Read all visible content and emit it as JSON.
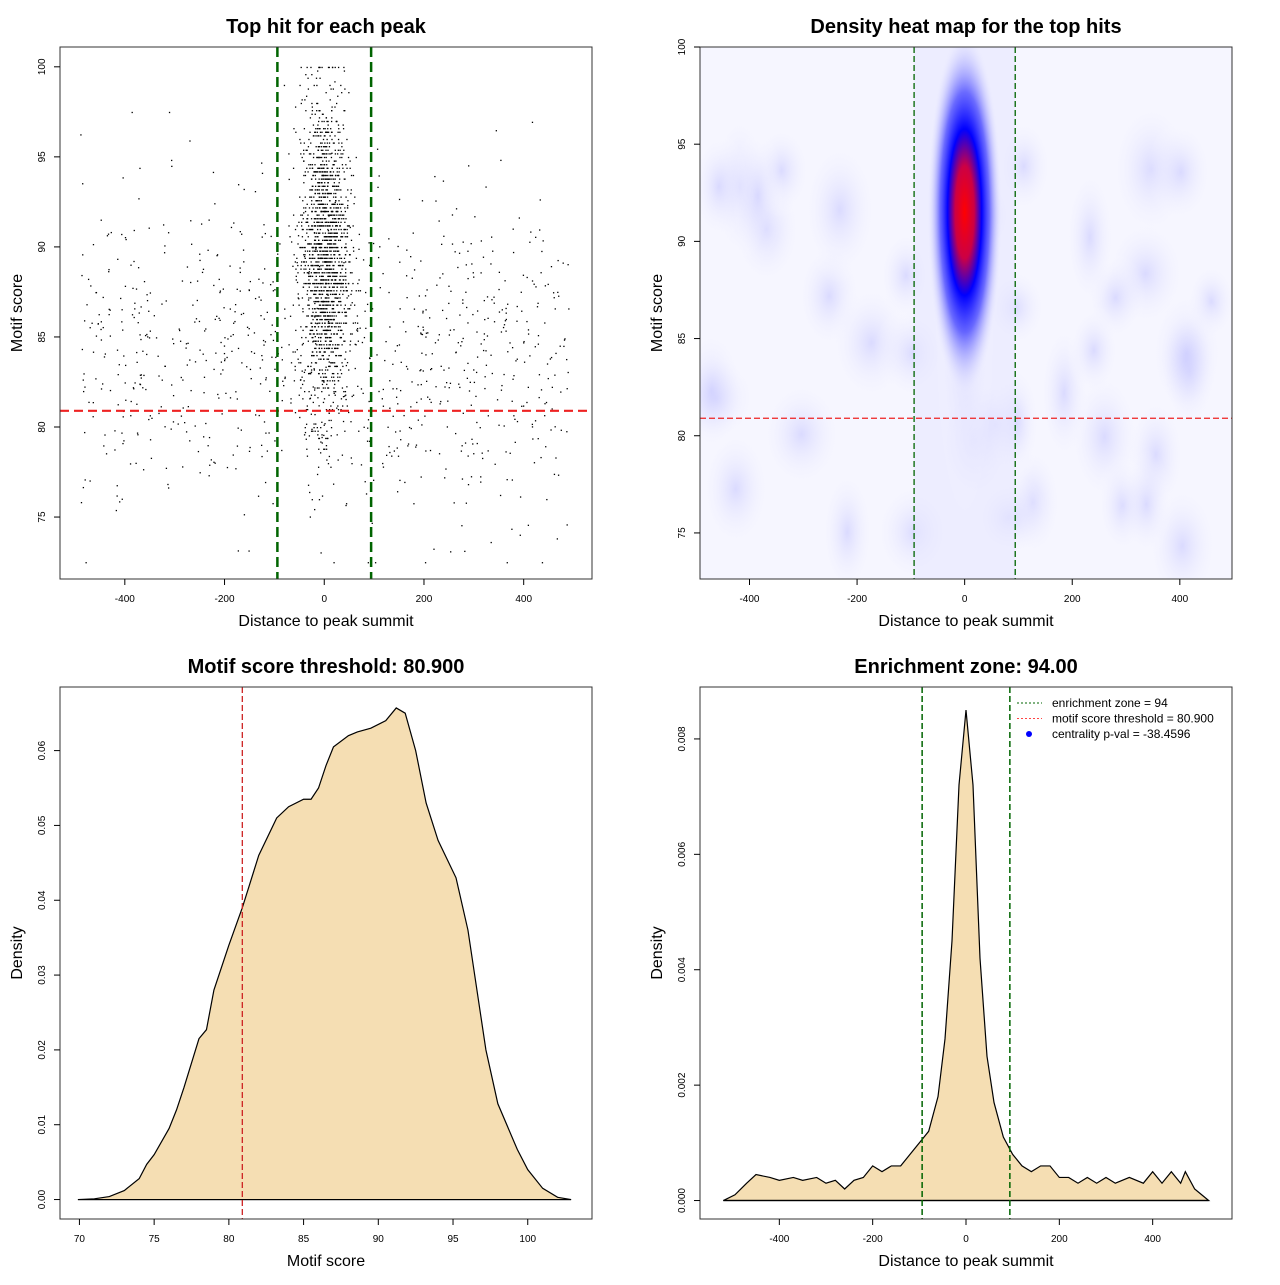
{
  "chart_data": [
    {
      "type": "scatter",
      "title": "Top hit for each peak",
      "xlabel": "Distance to peak summit",
      "ylabel": "Motif score",
      "xlim": [
        -530,
        537
      ],
      "ylim": [
        71.56,
        101.1
      ],
      "xticks": [
        -400,
        -200,
        0,
        200,
        400
      ],
      "yticks": [
        75,
        80,
        85,
        90,
        95,
        100
      ],
      "hline": 80.9,
      "vlines": [
        -94,
        94
      ],
      "point_generation": {
        "n_background": 900,
        "background_x": [
          -490,
          490
        ],
        "background_y_mean": 84,
        "background_y_sd": 4.5,
        "n_central": 1700,
        "central_x_sd": 24,
        "central_y_mean": 89.5,
        "central_y_sd": 4.5,
        "y_clip": [
          72.5,
          100
        ]
      }
    },
    {
      "type": "heatmap",
      "title": "Density heat map for the top hits",
      "xlabel": "Distance to peak summit",
      "ylabel": "Motif score",
      "xlim": [
        -492,
        497
      ],
      "ylim": [
        72.63,
        100
      ],
      "xticks": [
        -400,
        -200,
        0,
        200,
        400
      ],
      "yticks": [
        75,
        80,
        85,
        90,
        95,
        100
      ],
      "hline": 80.9,
      "vlines": [
        -94,
        94
      ],
      "peak": {
        "x": 0,
        "y": 91.5
      },
      "colors": [
        "#ffffff",
        "#0000ff",
        "#ff0000"
      ]
    },
    {
      "type": "area",
      "title": "Motif score threshold: 80.900",
      "xlabel": "Motif score",
      "ylabel": "Density",
      "xlim": [
        68.7,
        104.3
      ],
      "ylim": [
        -0.0026,
        0.0685
      ],
      "xticks": [
        70,
        75,
        80,
        85,
        90,
        95,
        100
      ],
      "yticks": [
        0,
        0.01,
        0.02,
        0.03,
        0.04,
        0.05,
        0.06
      ],
      "ytick_labels": [
        "0.00",
        "0.01",
        "0.02",
        "0.03",
        "0.04",
        "0.05",
        "0.06"
      ],
      "vline": 80.9,
      "vline_color": "#cc2222",
      "x": [
        69.9,
        71,
        72,
        73,
        74,
        74.5,
        75,
        76,
        76.5,
        77,
        78,
        78.5,
        79,
        80,
        80.9,
        82,
        83.2,
        84,
        85,
        85.5,
        86,
        86.5,
        87,
        88,
        88.6,
        89.5,
        90.5,
        91.2,
        91.8,
        92.5,
        93.2,
        94,
        95.2,
        96,
        97.2,
        98,
        99.3,
        100,
        101,
        102,
        102.9
      ],
      "y": [
        0,
        0.0001,
        0.0004,
        0.0012,
        0.0028,
        0.0047,
        0.006,
        0.0095,
        0.012,
        0.015,
        0.0215,
        0.0227,
        0.028,
        0.034,
        0.039,
        0.046,
        0.051,
        0.0525,
        0.0535,
        0.0535,
        0.055,
        0.058,
        0.0605,
        0.062,
        0.0625,
        0.063,
        0.064,
        0.0657,
        0.065,
        0.06,
        0.053,
        0.048,
        0.043,
        0.036,
        0.02,
        0.0128,
        0.0067,
        0.004,
        0.0015,
        0.0003,
        0
      ]
    },
    {
      "type": "area",
      "title": "Enrichment zone: 94.00",
      "xlabel": "Distance to peak summit",
      "ylabel": "Density",
      "xlim": [
        -570,
        570
      ],
      "ylim": [
        -0.00032,
        0.0089
      ],
      "xticks": [
        -400,
        -200,
        0,
        200,
        400
      ],
      "yticks": [
        0,
        0.002,
        0.004,
        0.006,
        0.008
      ],
      "ytick_labels": [
        "0.000",
        "0.002",
        "0.004",
        "0.006",
        "0.008"
      ],
      "vlines": [
        -94,
        94
      ],
      "x": [
        -520,
        -495,
        -470,
        -450,
        -420,
        -400,
        -370,
        -350,
        -320,
        -300,
        -280,
        -260,
        -240,
        -220,
        -200,
        -180,
        -160,
        -140,
        -120,
        -100,
        -80,
        -60,
        -45,
        -30,
        -15,
        0,
        15,
        30,
        45,
        60,
        80,
        100,
        120,
        140,
        160,
        180,
        200,
        220,
        240,
        260,
        280,
        300,
        320,
        350,
        380,
        400,
        420,
        440,
        460,
        470,
        490,
        505,
        520
      ],
      "y": [
        0,
        0.0001,
        0.0003,
        0.00045,
        0.0004,
        0.00035,
        0.0004,
        0.00035,
        0.0004,
        0.0003,
        0.00035,
        0.0002,
        0.00035,
        0.0004,
        0.0006,
        0.0005,
        0.0006,
        0.0006,
        0.0008,
        0.001,
        0.0012,
        0.0018,
        0.0028,
        0.0045,
        0.0072,
        0.0085,
        0.0072,
        0.0042,
        0.0025,
        0.0017,
        0.0011,
        0.0008,
        0.0006,
        0.0005,
        0.0006,
        0.0006,
        0.0004,
        0.0004,
        0.0003,
        0.0004,
        0.0003,
        0.0004,
        0.0003,
        0.0004,
        0.0003,
        0.0005,
        0.0003,
        0.0005,
        0.0003,
        0.0005,
        0.0002,
        0.0001,
        0
      ],
      "legend": {
        "position": "top-right",
        "entries": [
          {
            "label": "enrichment zone = 94",
            "style": "dotted",
            "color": "#006400"
          },
          {
            "label": "motif score threshold = 80.900",
            "style": "dotted",
            "color": "#ff4444"
          },
          {
            "label": "centrality p-val = -38.4596",
            "style": "point",
            "color": "#0000ff"
          }
        ]
      }
    }
  ],
  "colors": {
    "fill": "#f5deb3",
    "green": "#006400",
    "red": "#ee2222"
  }
}
